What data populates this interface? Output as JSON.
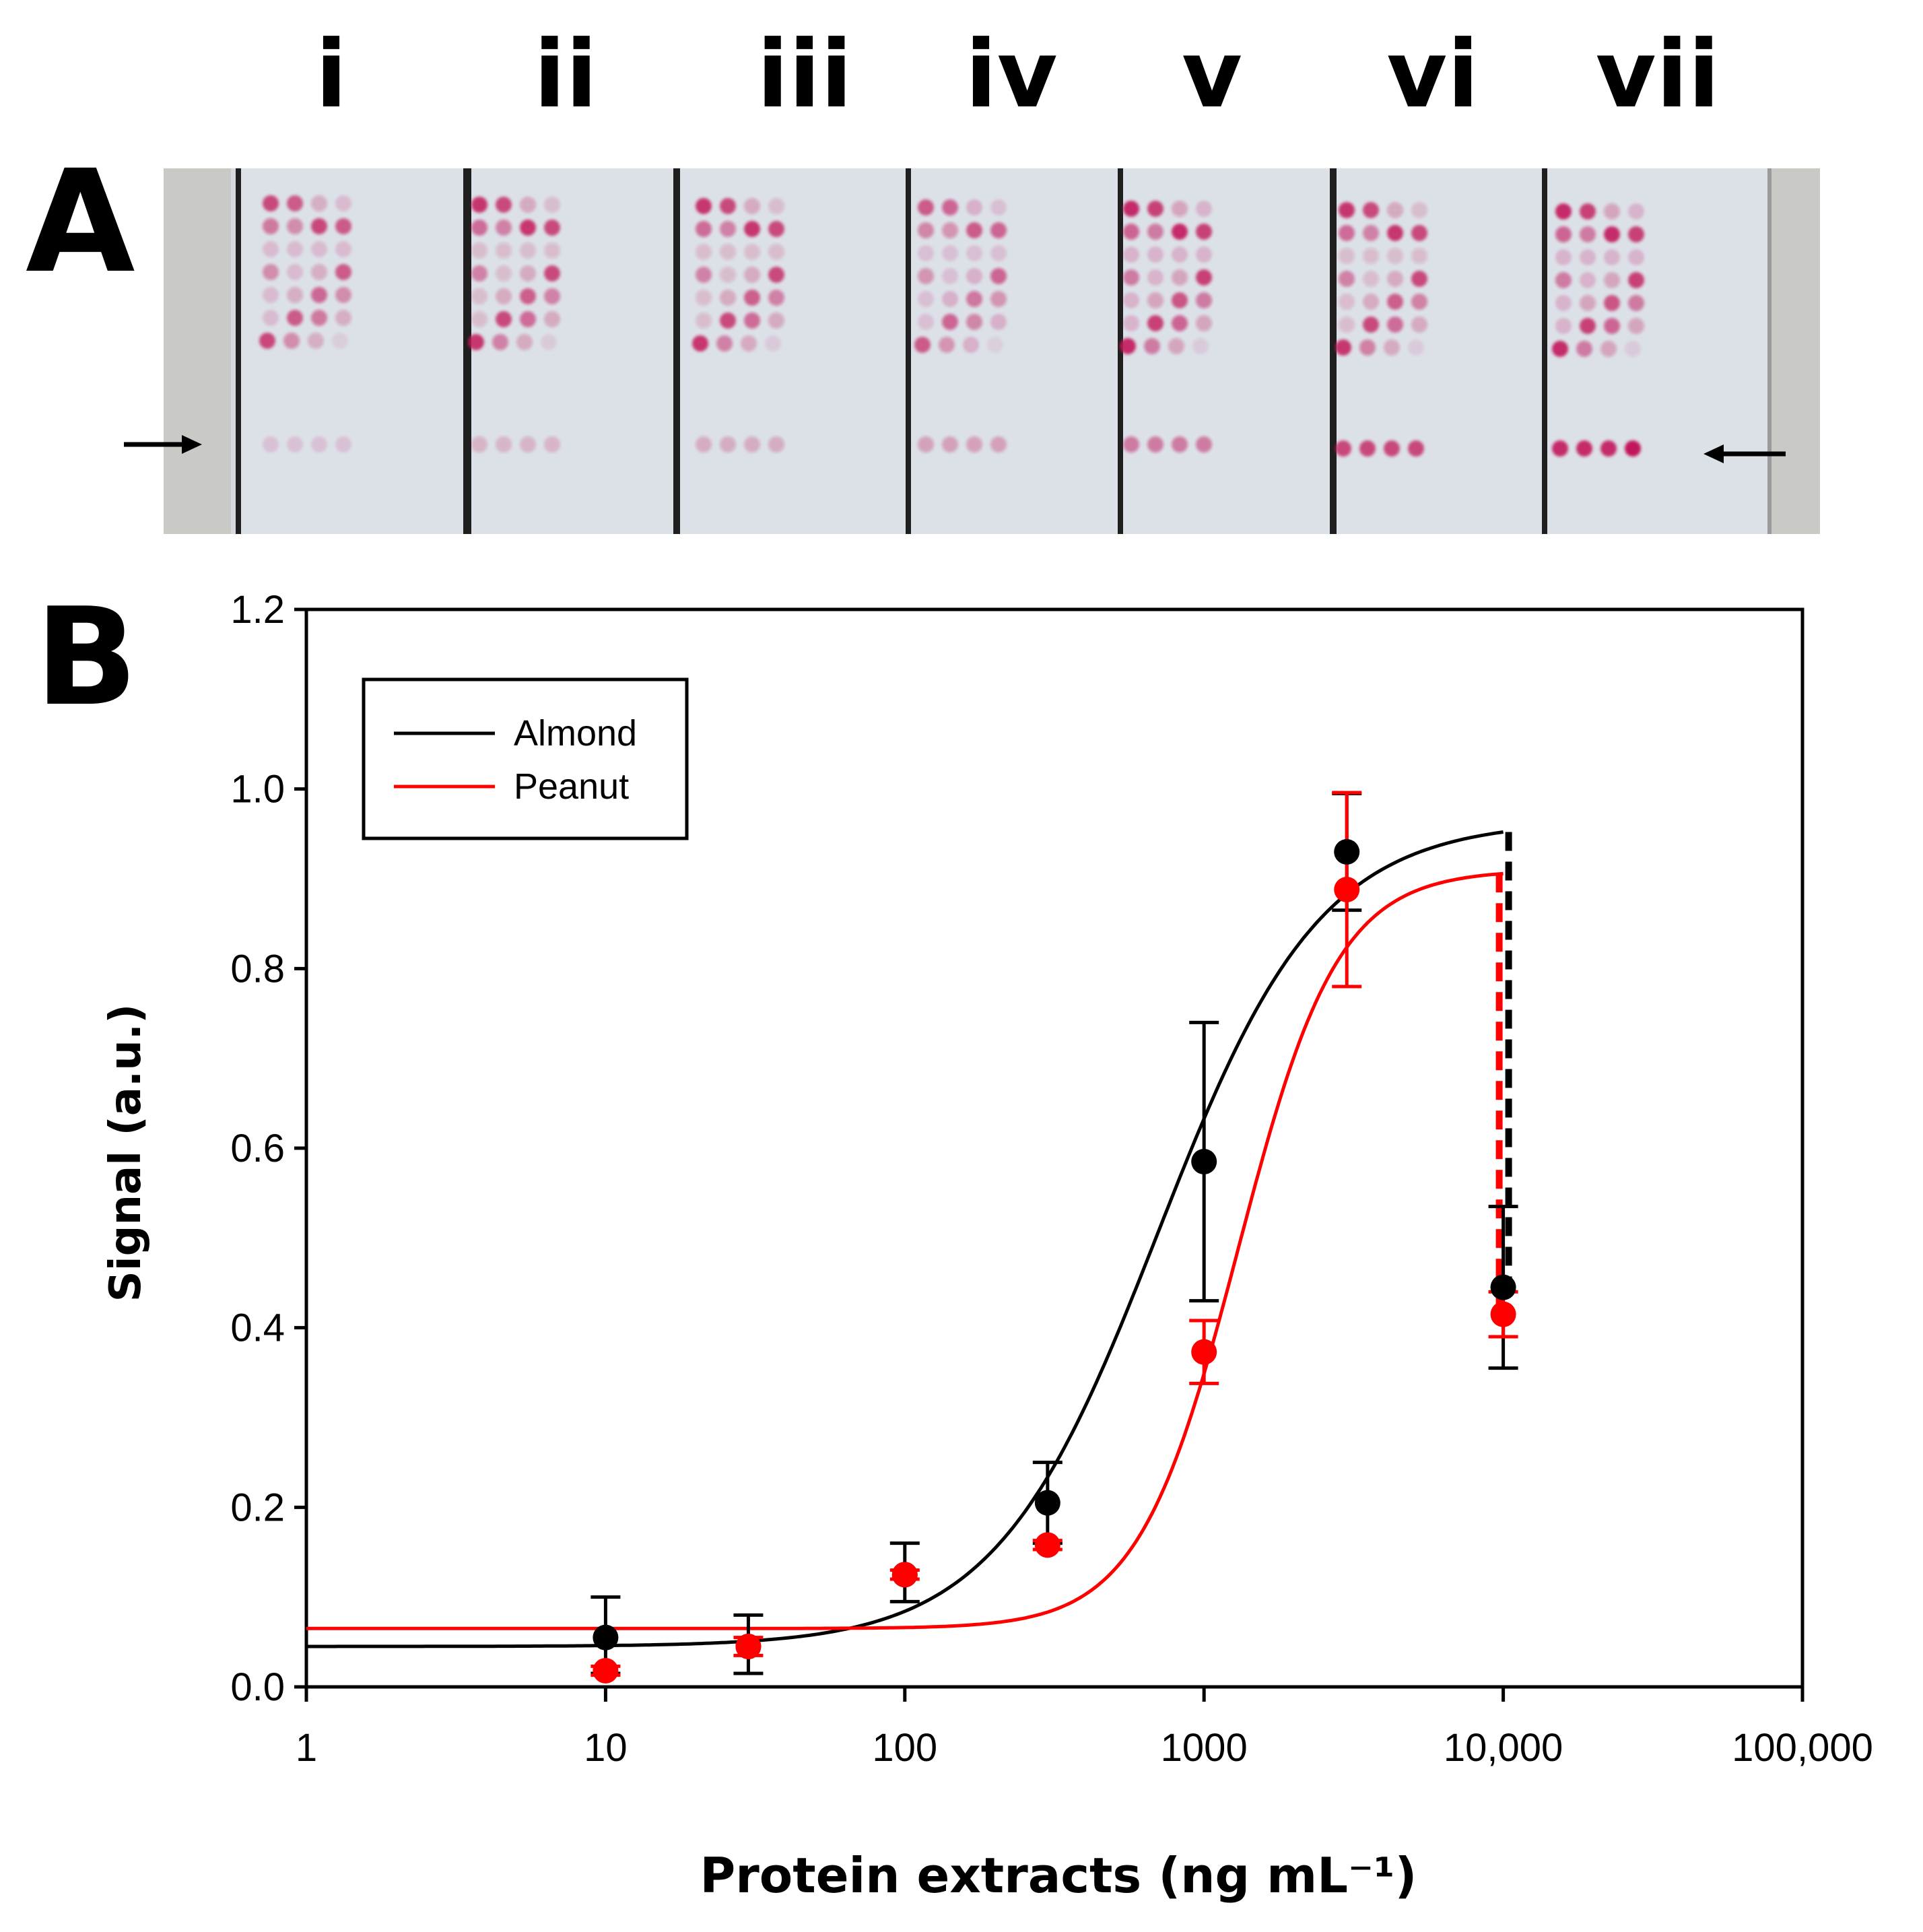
{
  "figure": {
    "panel_a_label": "A",
    "panel_b_label": "B",
    "lane_labels": [
      "i",
      "ii",
      "iii",
      "iv",
      "v",
      "vi",
      "vii"
    ]
  },
  "chart_data": {
    "type": "scatter",
    "xscale": "log",
    "xlim": [
      1,
      100000
    ],
    "ylim": [
      0,
      1.2
    ],
    "xlabel": "Protein extracts (ng mL⁻¹)",
    "ylabel": "Signal (a.u.)",
    "x_ticks": [
      1,
      10,
      100,
      1000,
      10000,
      100000
    ],
    "x_tick_labels": [
      "1",
      "10",
      "100",
      "1000",
      "10,000",
      "100,000"
    ],
    "y_ticks": [
      0,
      0.2,
      0.4,
      0.6,
      0.8,
      1.0,
      1.2
    ],
    "y_tick_labels": [
      "0.0",
      "0.2",
      "0.4",
      "0.6",
      "0.8",
      "1.0",
      "1.2"
    ],
    "legend": [
      "Almond",
      "Peanut"
    ],
    "legend_position": "top-left",
    "series": [
      {
        "name": "Almond",
        "color": "#000000",
        "points": [
          {
            "x": 10,
            "y": 0.055,
            "err_lo": 0.04,
            "err_hi": 0.045
          },
          {
            "x": 30,
            "y": 0.045,
            "err_lo": 0.03,
            "err_hi": 0.035
          },
          {
            "x": 100,
            "y": 0.125,
            "err_lo": 0.03,
            "err_hi": 0.035
          },
          {
            "x": 300,
            "y": 0.205,
            "err_lo": 0.045,
            "err_hi": 0.045
          },
          {
            "x": 1000,
            "y": 0.585,
            "err_lo": 0.155,
            "err_hi": 0.155
          },
          {
            "x": 3000,
            "y": 0.93,
            "err_lo": 0.065,
            "err_hi": 0.065
          },
          {
            "x": 10000,
            "y": 0.445,
            "err_lo": 0.09,
            "err_hi": 0.09
          }
        ],
        "fit": {
          "bottom": 0.045,
          "top": 0.965,
          "ec50": 700,
          "hill": 1.6,
          "x_end": 10000,
          "drop_to": 0.445
        }
      },
      {
        "name": "Peanut",
        "color": "#ff0000",
        "points": [
          {
            "x": 10,
            "y": 0.018,
            "err_lo": 0.005,
            "err_hi": 0.005
          },
          {
            "x": 30,
            "y": 0.045,
            "err_lo": 0.01,
            "err_hi": 0.01
          },
          {
            "x": 100,
            "y": 0.125,
            "err_lo": 0.005,
            "err_hi": 0.005
          },
          {
            "x": 300,
            "y": 0.158,
            "err_lo": 0.005,
            "err_hi": 0.005
          },
          {
            "x": 1000,
            "y": 0.373,
            "err_lo": 0.035,
            "err_hi": 0.035
          },
          {
            "x": 3000,
            "y": 0.888,
            "err_lo": 0.108,
            "err_hi": 0.108
          },
          {
            "x": 10000,
            "y": 0.415,
            "err_lo": 0.025,
            "err_hi": 0.025
          }
        ],
        "fit": {
          "bottom": 0.065,
          "top": 0.91,
          "ec50": 1300,
          "hill": 2.6,
          "x_end": 10000,
          "drop_to": 0.415
        }
      }
    ]
  }
}
